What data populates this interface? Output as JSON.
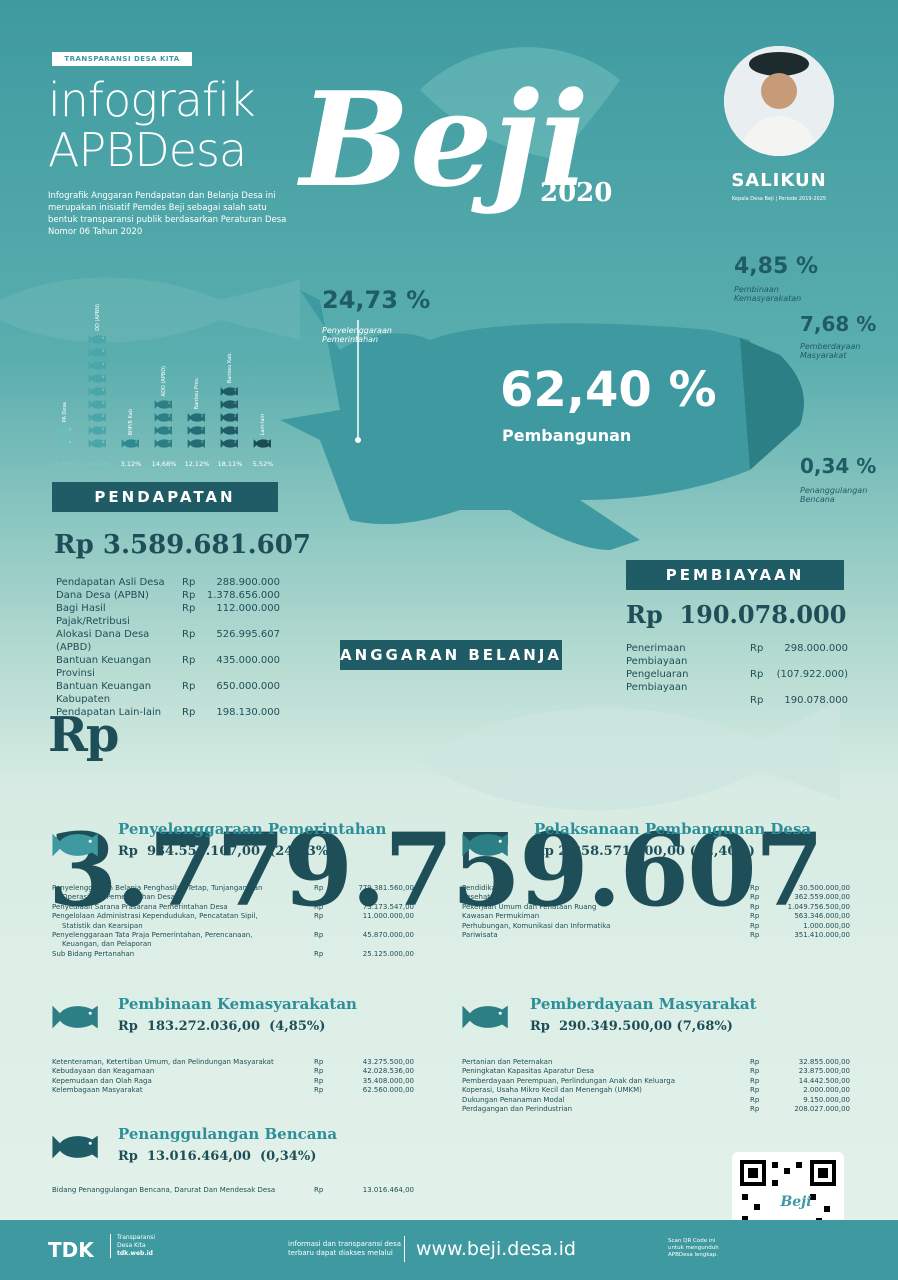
{
  "header": {
    "tag": "TRANSPARANSI DESA KITA",
    "title_line1": "infografik",
    "title_line2": "APBDesa",
    "intro": "Infografik Anggaran Pendapatan dan Belanja Desa ini merupakan inisiatif Pemdes Beji sebagai salah satu bentuk transparansi publik berdasarkan Peraturan Desa Nomor 06 Tahun 2020",
    "village": "Beji",
    "year": "2020"
  },
  "official": {
    "name": "SALIKUN",
    "role": "Kepala Desa Beji | Periode 2019-2025"
  },
  "breakdown": [
    {
      "pct": "24,73 %",
      "label1": "Penyelenggaraan",
      "label2": "Pemerintahan"
    },
    {
      "pct": "4,85 %",
      "label1": "Pembinaan",
      "label2": "Kemasyarakatan"
    },
    {
      "pct": "7,68 %",
      "label1": "Pemberdayaan",
      "label2": "Masyarakat"
    },
    {
      "pct": "0,34 %",
      "label1": "Penanggulangan",
      "label2": "Bencana"
    }
  ],
  "main_pct": {
    "pct": "62,40 %",
    "label": "Pembangunan"
  },
  "income_chart": {
    "labels": [
      "PA Desa",
      "DD (APBN)",
      "BHP/R Kab",
      "ADD (APBD)",
      "Bankeu Prov.",
      "Bankeu Kab.",
      "Lain-lain"
    ],
    "pcts": [
      "8,05%",
      "38,41%",
      "3,12%",
      "14,68%",
      "12,12%",
      "18,11%",
      "5,52%"
    ],
    "stack": [
      2,
      9,
      1,
      4,
      3,
      5,
      1
    ]
  },
  "pendapatan": {
    "title": "PENDAPATAN",
    "rp": "Rp",
    "total": "3.589.681.607",
    "items": [
      {
        "label": "Pendapatan Asli Desa",
        "rp": "Rp",
        "value": "288.900.000"
      },
      {
        "label": "Dana Desa (APBN)",
        "rp": "Rp",
        "value": "1.378.656.000"
      },
      {
        "label": "Bagi Hasil Pajak/Retribusi",
        "rp": "Rp",
        "value": "112.000.000"
      },
      {
        "label": "Alokasi Dana Desa (APBD)",
        "rp": "Rp",
        "value": "526.995.607"
      },
      {
        "label": "Bantuan Keuangan Provinsi",
        "rp": "Rp",
        "value": "435.000.000"
      },
      {
        "label": "Bantuan Keuangan Kabupaten",
        "rp": "Rp",
        "value": "650.000.000"
      },
      {
        "label": "Pendapatan Lain-lain",
        "rp": "Rp",
        "value": "198.130.000"
      }
    ]
  },
  "pembiayaan": {
    "title": "PEMBIAYAAN",
    "rp": "Rp",
    "total": "190.078.000",
    "items": [
      {
        "label": "Penerimaan Pembiayaan",
        "rp": "Rp",
        "value": "298.000.000"
      },
      {
        "label": "Pengeluaran Pembiayaan",
        "rp": "Rp",
        "value": "(107.922.000)"
      },
      {
        "label": "",
        "rp": "Rp",
        "value": "190.078.000"
      }
    ]
  },
  "belanja": {
    "title": "ANGGARAN BELANJA",
    "rp": "Rp",
    "total": "3.779.759.607"
  },
  "sections": [
    {
      "title": "Penyelenggaraan Pemerintahan",
      "amount": "Rp  934.550.107,00  (24,73%)",
      "items": [
        {
          "label": "Penyelenggaraan Belanja Penghasilan Tetap, Tunjangan dan",
          "label2": "Operasional Pemerintahan Desa",
          "rp": "Rp",
          "value": "779.381.560,00"
        },
        {
          "label": "Penyediaan Sarana Prasarana Pemerintahan Desa",
          "label2": "",
          "rp": "Rp",
          "value": "73.173.547,00"
        },
        {
          "label": "Pengelolaan Administrasi Kependudukan, Pencatatan Sipil,",
          "label2": "Statistik dan Kearsipan",
          "rp": "Rp",
          "value": "11.000.000,00"
        },
        {
          "label": "Penyelenggaraan Tata Praja Pemerintahan, Perencanaan,",
          "label2": "Keuangan, dan Pelaporan",
          "rp": "Rp",
          "value": "45.870.000,00"
        },
        {
          "label": "Sub Bidang Pertanahan",
          "label2": "",
          "rp": "Rp",
          "value": "25.125.000,00"
        }
      ]
    },
    {
      "title": "Pelaksanaan Pembangunan Desa",
      "amount": "Rp 2.358.571.500,00 (62,40%)",
      "items": [
        {
          "label": "Pendidikan",
          "rp": "Rp",
          "value": "30.500.000,00"
        },
        {
          "label": "Kesehatan",
          "rp": "Rp",
          "value": "362.559.000,00"
        },
        {
          "label": "Pekerjaan Umum dan Penataan Ruang",
          "rp": "Rp",
          "value": "1.049.756.500,00"
        },
        {
          "label": "Kawasan Permukiman",
          "rp": "Rp",
          "value": "563.346.000,00"
        },
        {
          "label": "Perhubungan, Komunikasi dan Informatika",
          "rp": "Rp",
          "value": "1.000.000,00"
        },
        {
          "label": "Pariwisata",
          "rp": "Rp",
          "value": "351.410.000,00"
        }
      ]
    },
    {
      "title": "Pembinaan Kemasyarakatan",
      "amount": "Rp  183.272.036,00  (4,85%)",
      "items": [
        {
          "label": "Ketenteraman, Ketertiban Umum, dan Pelindungan Masyarakat",
          "rp": "Rp",
          "value": "43.275.500,00"
        },
        {
          "label": "Kebudayaan dan Keagamaan",
          "rp": "Rp",
          "value": "42.028.536,00"
        },
        {
          "label": "Kepemudaan dan Olah Raga",
          "rp": "Rp",
          "value": "35.408.000,00"
        },
        {
          "label": "Kelembagaan Masyarakat",
          "rp": "Rp",
          "value": "62.560.000,00"
        }
      ]
    },
    {
      "title": "Pemberdayaan Masyarakat",
      "amount": "Rp  290.349.500,00 (7,68%)",
      "items": [
        {
          "label": "Pertanian dan Peternakan",
          "rp": "Rp",
          "value": "32.855.000,00"
        },
        {
          "label": "Peningkatan Kapasitas Aparatur Desa",
          "rp": "Rp",
          "value": "23.875.000,00"
        },
        {
          "label": "Pemberdayaan Perempuan, Perlindungan Anak dan Keluarga",
          "rp": "Rp",
          "value": "14.442.500,00"
        },
        {
          "label": "Koperasi, Usaha Mikro Kecil dan Menengah (UMKM)",
          "rp": "Rp",
          "value": "2.000.000,00"
        },
        {
          "label": "Dukungan Penanaman Modal",
          "rp": "Rp",
          "value": "9.150.000,00"
        },
        {
          "label": "Perdagangan dan Perindustrian",
          "rp": "Rp",
          "value": "208.027.000,00"
        }
      ]
    },
    {
      "title": "Penanggulangan Bencana",
      "amount": "Rp  13.016.464,00  (0,34%)",
      "items": [
        {
          "label": "Bidang Penanggulangan Bencana, Darurat Dan Mendesak Desa",
          "rp": "Rp",
          "value": "13.016.464,00"
        }
      ]
    }
  ],
  "footer": {
    "brand": "TDK",
    "brand_sub1": "Transparansi",
    "brand_sub2": "Desa Kita",
    "brand_url": "tdk.web.id",
    "info1": "informasi dan transparansi desa",
    "info2": "terbaru dapat diakses melalui",
    "url": "www.beji.desa.id",
    "qr1": "Scan QR Code ini",
    "qr2": "untuk mengunduh",
    "qr3": "APBDesa lengkap.",
    "qr_logo": "Beji"
  },
  "colors": {
    "dark": "#1f5c66",
    "teal": "#3e9aa0",
    "light": "#d8ece4"
  }
}
